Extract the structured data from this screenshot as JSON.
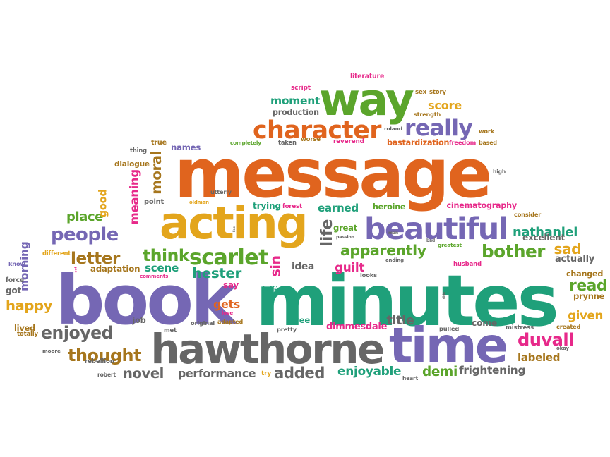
{
  "palette": {
    "orange": "#e0641e",
    "yellow": "#e3a51c",
    "green": "#5ba52b",
    "teal": "#1fa07a",
    "purple": "#7567b4",
    "gray": "#666666",
    "brown": "#a6761d",
    "magenta": "#e7298a"
  },
  "words": [
    "message",
    "minutes",
    "book",
    "hawthorne",
    "time",
    "acting",
    "way",
    "character",
    "beautiful",
    "really",
    "meaning",
    "moral",
    "people",
    "letter",
    "scarlet",
    "hester",
    "think",
    "bother",
    "apparently",
    "nathaniel",
    "thought",
    "enjoyed",
    "duvall",
    "novel",
    "performance",
    "added",
    "enjoyable",
    "demi",
    "frightening",
    "labeled",
    "happy",
    "morning",
    "got",
    "place",
    "good",
    "adaptation",
    "scene",
    "life",
    "idea",
    "guilt",
    "sin",
    "earned",
    "heroine",
    "great",
    "cinematography",
    "consider",
    "excellent",
    "sad",
    "actually",
    "changed",
    "read",
    "prynne",
    "given",
    "come",
    "title",
    "dimmesdale",
    "screen",
    "pretty",
    "original",
    "adapted",
    "love",
    "met",
    "job",
    "lived",
    "totally",
    "moore",
    "robert",
    "rebellion",
    "set",
    "comments",
    "force",
    "know",
    "different",
    "point",
    "oldman",
    "utterly",
    "trying",
    "forest",
    "line",
    "bastardization",
    "freedom",
    "based",
    "reverend",
    "worse",
    "taken",
    "completely",
    "names",
    "true",
    "thing",
    "dialogue",
    "moment",
    "production",
    "score",
    "strength",
    "script",
    "literature",
    "sex",
    "story",
    "roland",
    "work",
    "high",
    "greatest",
    "bad",
    "husband",
    "ending",
    "looks",
    "passion",
    "man",
    "joffé",
    "didn",
    "pulled",
    "mistress",
    "created",
    "okay",
    "heart",
    "try",
    "gets",
    "say"
  ]
}
